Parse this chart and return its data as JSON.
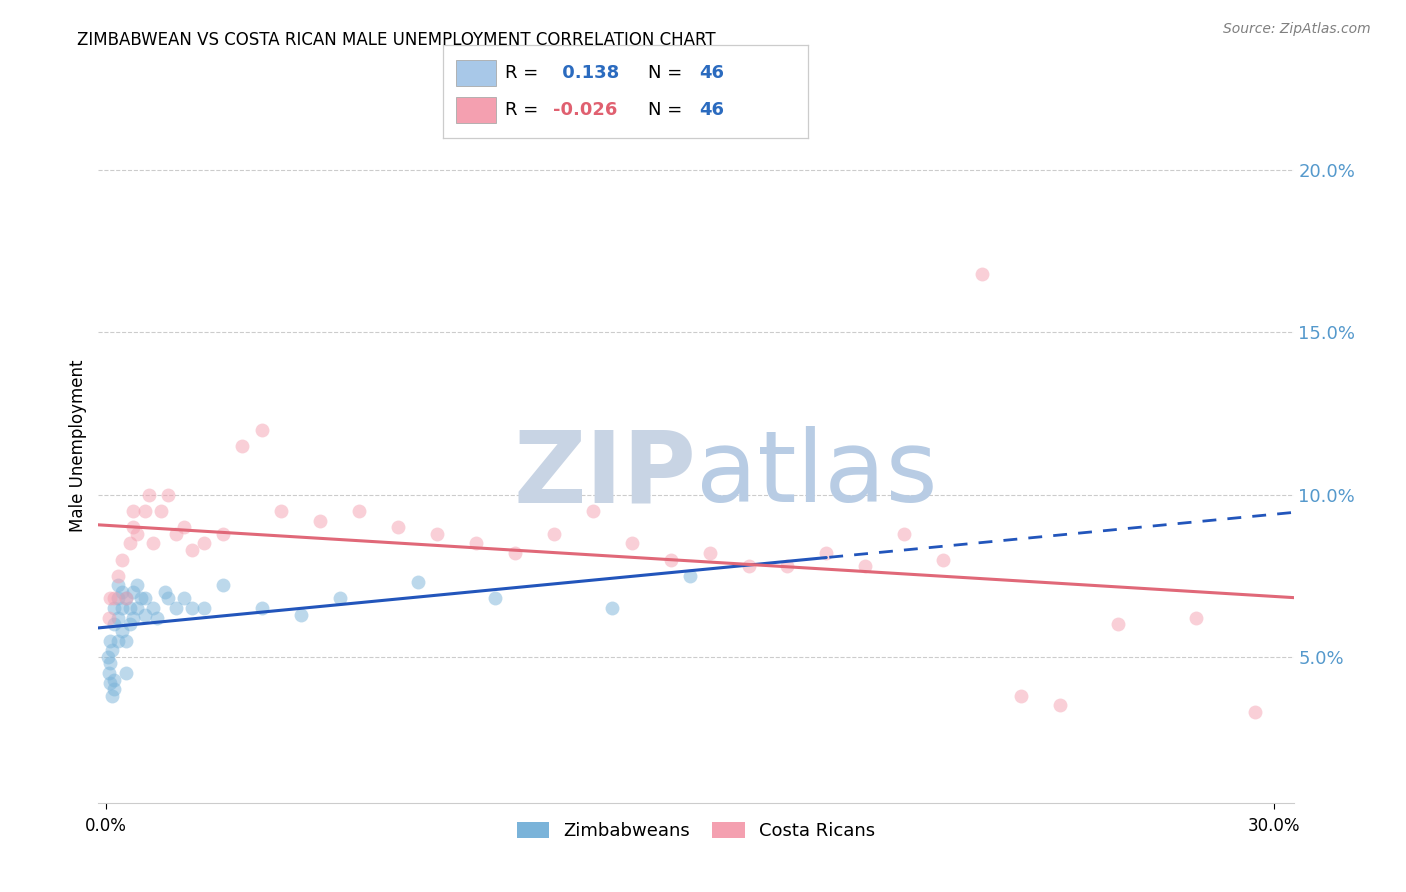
{
  "title": "ZIMBABWEAN VS COSTA RICAN MALE UNEMPLOYMENT CORRELATION CHART",
  "source": "Source: ZipAtlas.com",
  "ylabel": "Male Unemployment",
  "right_yticks": [
    0.05,
    0.1,
    0.15,
    0.2
  ],
  "right_yticklabels": [
    "5.0%",
    "10.0%",
    "15.0%",
    "20.0%"
  ],
  "xlim": [
    -0.002,
    0.305
  ],
  "ylim": [
    0.005,
    0.225
  ],
  "xticks": [
    0.0,
    0.3
  ],
  "xticklabels": [
    "0.0%",
    "30.0%"
  ],
  "legend_entries": [
    {
      "color": "#a8c8e8",
      "R": "0.138",
      "N": "46",
      "R_color": "#2b6bbf"
    },
    {
      "color": "#f4a0b0",
      "R": "-0.026",
      "N": "46",
      "R_color": "#e06070"
    }
  ],
  "zimbabweans_x": [
    0.0005,
    0.0008,
    0.001,
    0.001,
    0.001,
    0.0015,
    0.0015,
    0.002,
    0.002,
    0.002,
    0.002,
    0.003,
    0.003,
    0.003,
    0.003,
    0.004,
    0.004,
    0.004,
    0.005,
    0.005,
    0.005,
    0.006,
    0.006,
    0.007,
    0.007,
    0.008,
    0.008,
    0.009,
    0.01,
    0.01,
    0.012,
    0.013,
    0.015,
    0.016,
    0.018,
    0.02,
    0.022,
    0.025,
    0.03,
    0.04,
    0.05,
    0.06,
    0.08,
    0.1,
    0.13,
    0.15
  ],
  "zimbabweans_y": [
    0.05,
    0.045,
    0.042,
    0.048,
    0.055,
    0.038,
    0.052,
    0.04,
    0.043,
    0.06,
    0.065,
    0.055,
    0.062,
    0.068,
    0.072,
    0.058,
    0.065,
    0.07,
    0.045,
    0.055,
    0.068,
    0.06,
    0.065,
    0.062,
    0.07,
    0.065,
    0.072,
    0.068,
    0.063,
    0.068,
    0.065,
    0.062,
    0.07,
    0.068,
    0.065,
    0.068,
    0.065,
    0.065,
    0.072,
    0.065,
    0.063,
    0.068,
    0.073,
    0.068,
    0.065,
    0.075
  ],
  "costa_ricans_x": [
    0.0008,
    0.001,
    0.002,
    0.003,
    0.004,
    0.005,
    0.006,
    0.007,
    0.007,
    0.008,
    0.01,
    0.011,
    0.012,
    0.014,
    0.016,
    0.018,
    0.02,
    0.022,
    0.025,
    0.03,
    0.035,
    0.04,
    0.045,
    0.055,
    0.065,
    0.075,
    0.085,
    0.095,
    0.105,
    0.115,
    0.125,
    0.135,
    0.145,
    0.155,
    0.165,
    0.175,
    0.185,
    0.195,
    0.205,
    0.215,
    0.225,
    0.235,
    0.245,
    0.26,
    0.28,
    0.295
  ],
  "costa_ricans_y": [
    0.062,
    0.068,
    0.068,
    0.075,
    0.08,
    0.068,
    0.085,
    0.09,
    0.095,
    0.088,
    0.095,
    0.1,
    0.085,
    0.095,
    0.1,
    0.088,
    0.09,
    0.083,
    0.085,
    0.088,
    0.115,
    0.12,
    0.095,
    0.092,
    0.095,
    0.09,
    0.088,
    0.085,
    0.082,
    0.088,
    0.095,
    0.085,
    0.08,
    0.082,
    0.078,
    0.078,
    0.082,
    0.078,
    0.088,
    0.08,
    0.168,
    0.038,
    0.035,
    0.06,
    0.062,
    0.033
  ],
  "zimbabwean_color": "#7ab3d9",
  "costa_rican_color": "#f4a0b0",
  "zimbabwean_line_color": "#2255bb",
  "costa_rican_line_color": "#e06878",
  "watermark_zip_color": "#c8d4e4",
  "watermark_atlas_color": "#b8cce4",
  "background_color": "#ffffff",
  "grid_color": "#cccccc",
  "right_axis_color": "#5599cc",
  "title_fontsize": 12,
  "marker_size": 100,
  "marker_alpha": 0.5,
  "zim_trendline_solid_end": 0.185,
  "zim_trendline_dash_start": 0.185
}
